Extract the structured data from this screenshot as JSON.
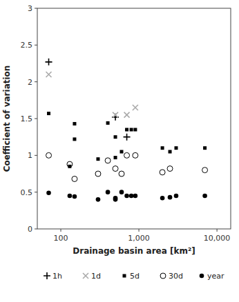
{
  "chart_data": {
    "type": "scatter",
    "xlabel": "Drainage basin area [km²]",
    "ylabel": "Coefficient of variation",
    "log": "x",
    "grid": false,
    "legend": "bottom",
    "xlim": [
      50,
      15000
    ],
    "ylim": [
      0,
      3
    ],
    "xticks": [
      100,
      {
        "value": 1000,
        "label": "1,000"
      },
      {
        "value": 10000,
        "label": "10,000"
      }
    ],
    "yticks": [
      0,
      0.5,
      1,
      1.5,
      2,
      2.5,
      3
    ],
    "series": [
      {
        "name": "1h",
        "color": "#000000",
        "marker": "plus",
        "x": [
          70,
          500,
          700
        ],
        "values": [
          2.27,
          1.52,
          1.25
        ]
      },
      {
        "name": "1d",
        "color": "#aaaaaa",
        "marker": "cross",
        "x": [
          70,
          500,
          700,
          900
        ],
        "values": [
          2.1,
          1.55,
          1.55,
          1.65
        ]
      },
      {
        "name": "5d",
        "color": "#000000",
        "marker": "square",
        "x": [
          70,
          130,
          150,
          150,
          300,
          400,
          500,
          500,
          600,
          700,
          800,
          900,
          2000,
          2500,
          3000,
          7000
        ],
        "values": [
          1.57,
          0.85,
          1.43,
          1.22,
          0.95,
          1.44,
          0.97,
          1.25,
          1.05,
          1.35,
          1.35,
          1.35,
          1.1,
          1.05,
          1.1,
          1.1
        ]
      },
      {
        "name": "30d",
        "color": "#000000",
        "marker": "circle-open",
        "x": [
          70,
          130,
          150,
          300,
          400,
          500,
          600,
          700,
          900,
          2000,
          2500,
          7000
        ],
        "values": [
          1.0,
          0.88,
          0.68,
          0.75,
          0.93,
          0.82,
          0.75,
          1.0,
          1.0,
          0.77,
          0.82,
          0.8
        ]
      },
      {
        "name": "year",
        "color": "#000000",
        "marker": "circle",
        "x": [
          70,
          130,
          150,
          300,
          400,
          500,
          500,
          600,
          700,
          800,
          900,
          2000,
          2500,
          3000,
          7000
        ],
        "values": [
          0.49,
          0.45,
          0.44,
          0.4,
          0.5,
          0.4,
          0.42,
          0.5,
          0.45,
          0.45,
          0.45,
          0.42,
          0.43,
          0.45,
          0.45
        ]
      }
    ]
  }
}
